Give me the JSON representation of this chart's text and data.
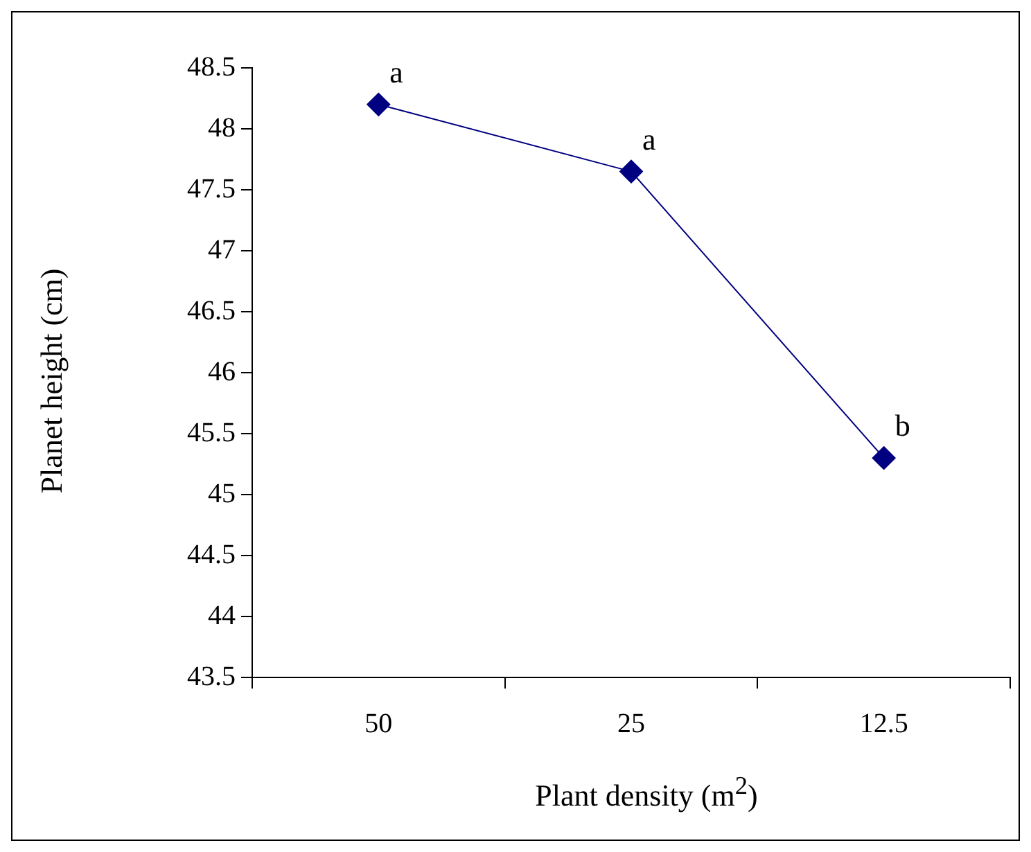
{
  "chart_data": {
    "type": "line",
    "xlabel": "Plant density (m$^{2}$)",
    "ylabel": "Planet height (cm)",
    "categories": [
      "50",
      "25",
      "12.5"
    ],
    "series": [
      {
        "color": "#000080",
        "values": [
          48.2,
          47.65,
          45.3
        ]
      }
    ],
    "ylim": [
      43.5,
      48.5
    ],
    "yticks": [
      43.5,
      44,
      44.5,
      45,
      45.5,
      46,
      46.5,
      47,
      47.5,
      48,
      48.5
    ],
    "marker": "diamond",
    "line_style": "solid",
    "grid": false,
    "legend": false,
    "annotations": [
      {
        "text": "a",
        "x": "50",
        "y": 48.2
      },
      {
        "text": "a",
        "x": "25",
        "y": 47.65
      },
      {
        "text": "b",
        "x": "12.5",
        "y": 45.3
      }
    ]
  }
}
